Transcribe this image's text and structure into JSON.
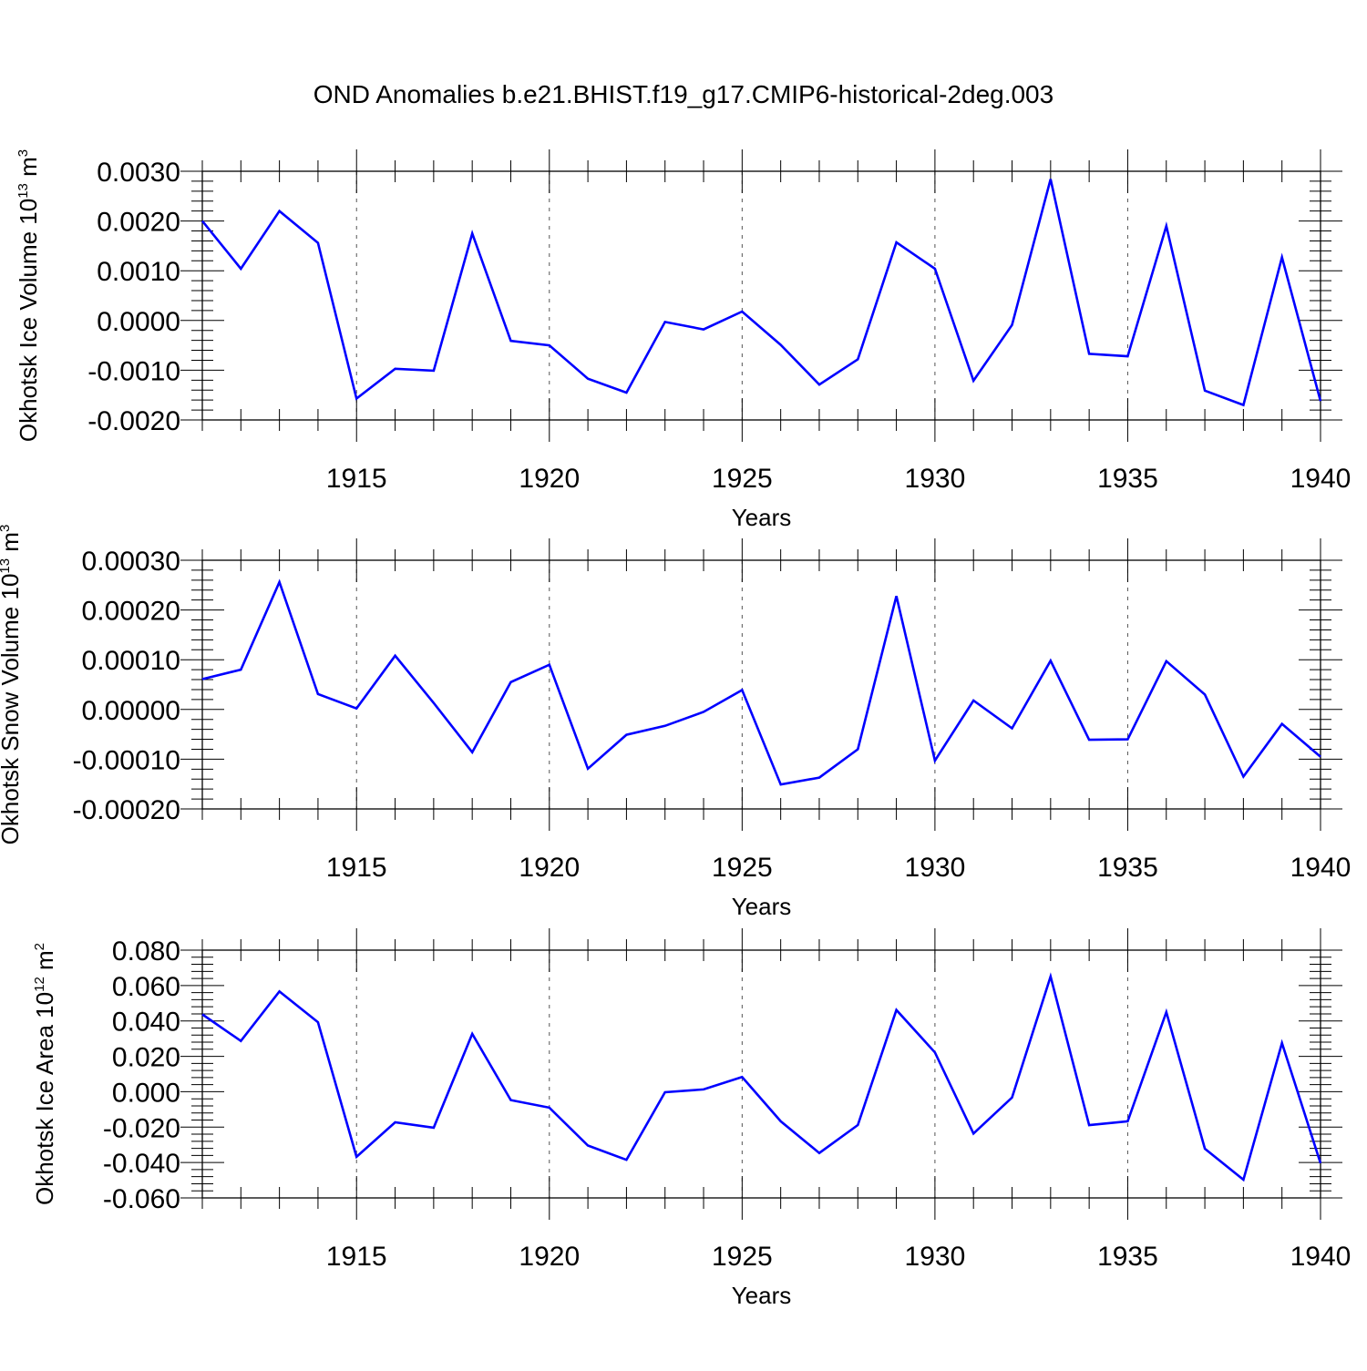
{
  "title": "OND Anomalies b.e21.BHIST.f19_g17.CMIP6-historical-2deg.003",
  "colors": {
    "line": "#0000ff",
    "axis": "#000000",
    "grid": "#555555"
  },
  "chart_data": [
    {
      "type": "line",
      "xlabel": "Years",
      "ylabel": {
        "text": "Okhotsk Ice Volume 10",
        "exp": "13",
        "unit": " m",
        "unit_exp": "3"
      },
      "xlim": [
        1911,
        1940
      ],
      "ylim": [
        -0.002,
        0.003
      ],
      "xticks": [
        1915,
        1920,
        1925,
        1930,
        1935,
        1940
      ],
      "yticks": [
        -0.002,
        -0.001,
        0.0,
        0.001,
        0.002,
        0.003
      ],
      "ytick_labels": [
        "-0.0020",
        "-0.0010",
        "0.0000",
        "0.0010",
        "0.0020",
        "0.0030"
      ],
      "grid": "vertical dashed at major x ticks",
      "series": [
        {
          "x": [
            1911,
            1912,
            1913,
            1914,
            1915,
            1916,
            1917,
            1918,
            1919,
            1920,
            1921,
            1922,
            1923,
            1924,
            1925,
            1926,
            1927,
            1928,
            1929,
            1930,
            1931,
            1932,
            1933,
            1934,
            1935,
            1936,
            1937,
            1938,
            1939,
            1940
          ],
          "values": [
            0.002,
            0.00104,
            0.0022,
            0.00156,
            -0.00157,
            -0.00097,
            -0.00101,
            0.00175,
            -0.00041,
            -0.0005,
            -0.00117,
            -0.00145,
            -3e-05,
            -0.00018,
            0.00018,
            -0.00049,
            -0.00129,
            -0.00078,
            0.00157,
            0.00104,
            -0.00121,
            -9e-05,
            0.00284,
            -0.00067,
            -0.00072,
            0.0019,
            -0.00141,
            -0.0017,
            0.00127,
            -0.00162
          ]
        }
      ]
    },
    {
      "type": "line",
      "xlabel": "Years",
      "ylabel": {
        "text": "Okhotsk Snow Volume 10",
        "exp": "13",
        "unit": " m",
        "unit_exp": "3"
      },
      "xlim": [
        1911,
        1940
      ],
      "ylim": [
        -0.0002,
        0.0003
      ],
      "xticks": [
        1915,
        1920,
        1925,
        1930,
        1935,
        1940
      ],
      "yticks": [
        -0.0002,
        -0.0001,
        0.0,
        0.0001,
        0.0002,
        0.0003
      ],
      "ytick_labels": [
        "-0.00020",
        "-0.00010",
        "0.00000",
        "0.00010",
        "0.00020",
        "0.00030"
      ],
      "grid": "vertical dashed at major x ticks",
      "series": [
        {
          "x": [
            1911,
            1912,
            1913,
            1914,
            1915,
            1916,
            1917,
            1918,
            1919,
            1920,
            1921,
            1922,
            1923,
            1924,
            1925,
            1926,
            1927,
            1928,
            1929,
            1930,
            1931,
            1932,
            1933,
            1934,
            1935,
            1936,
            1937,
            1938,
            1939,
            1940
          ],
          "values": [
            6.1e-05,
            8e-05,
            0.000256,
            3.1e-05,
            2e-06,
            0.000108,
            1.3e-05,
            -8.6e-05,
            5.5e-05,
            9e-05,
            -0.000119,
            -5.1e-05,
            -3.3e-05,
            -5e-06,
            3.9e-05,
            -0.000151,
            -0.000137,
            -8e-05,
            0.000228,
            -0.000103,
            1.8e-05,
            -3.8e-05,
            9.8e-05,
            -6.1e-05,
            -6e-05,
            9.7e-05,
            3e-05,
            -0.000135,
            -2.9e-05,
            -9.5e-05
          ]
        }
      ]
    },
    {
      "type": "line",
      "xlabel": "Years",
      "ylabel": {
        "text": "Okhotsk Ice Area 10",
        "exp": "12",
        "unit": " m",
        "unit_exp": "2"
      },
      "xlim": [
        1911,
        1940
      ],
      "ylim": [
        -0.06,
        0.08
      ],
      "xticks": [
        1915,
        1920,
        1925,
        1930,
        1935,
        1940
      ],
      "yticks": [
        -0.06,
        -0.04,
        -0.02,
        0.0,
        0.02,
        0.04,
        0.06,
        0.08
      ],
      "ytick_labels": [
        "-0.060",
        "-0.040",
        "-0.020",
        "0.000",
        "0.020",
        "0.040",
        "0.060",
        "0.080"
      ],
      "grid": "vertical dashed at major x ticks",
      "series": [
        {
          "x": [
            1911,
            1912,
            1913,
            1914,
            1915,
            1916,
            1917,
            1918,
            1919,
            1920,
            1921,
            1922,
            1923,
            1924,
            1925,
            1926,
            1927,
            1928,
            1929,
            1930,
            1931,
            1932,
            1933,
            1934,
            1935,
            1936,
            1937,
            1938,
            1939,
            1940
          ],
          "values": [
            0.0437,
            0.0287,
            0.0567,
            0.0393,
            -0.0368,
            -0.0173,
            -0.0203,
            0.0327,
            -0.0047,
            -0.009,
            -0.0304,
            -0.0385,
            -0.0003,
            0.0013,
            0.0083,
            -0.0167,
            -0.0346,
            -0.0188,
            0.0462,
            0.0222,
            -0.0236,
            -0.0033,
            0.0651,
            -0.0189,
            -0.0167,
            0.045,
            -0.0322,
            -0.0497,
            0.0275,
            -0.0404
          ]
        }
      ]
    }
  ]
}
